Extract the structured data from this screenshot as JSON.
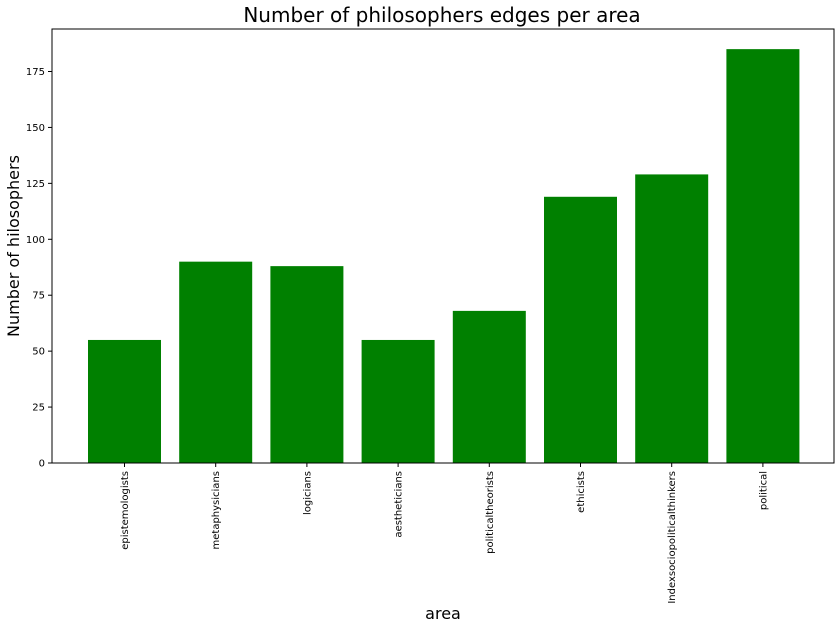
{
  "chart_data": {
    "type": "bar",
    "title": "Number of philosophers edges per area",
    "xlabel": "area",
    "ylabel": "Number of hilosophers",
    "categories": [
      "epistemologists",
      "metaphysicians",
      "logicians",
      "aestheticians",
      "politicaltheorists",
      "ethicists",
      "Indexsociopoliticalthinkers",
      "political"
    ],
    "values": [
      55,
      90,
      88,
      55,
      68,
      119,
      129,
      185
    ],
    "yticks": [
      0,
      25,
      50,
      75,
      100,
      125,
      150,
      175
    ],
    "ylim": [
      0,
      194
    ],
    "bar_color": "#008000",
    "grid": false
  }
}
